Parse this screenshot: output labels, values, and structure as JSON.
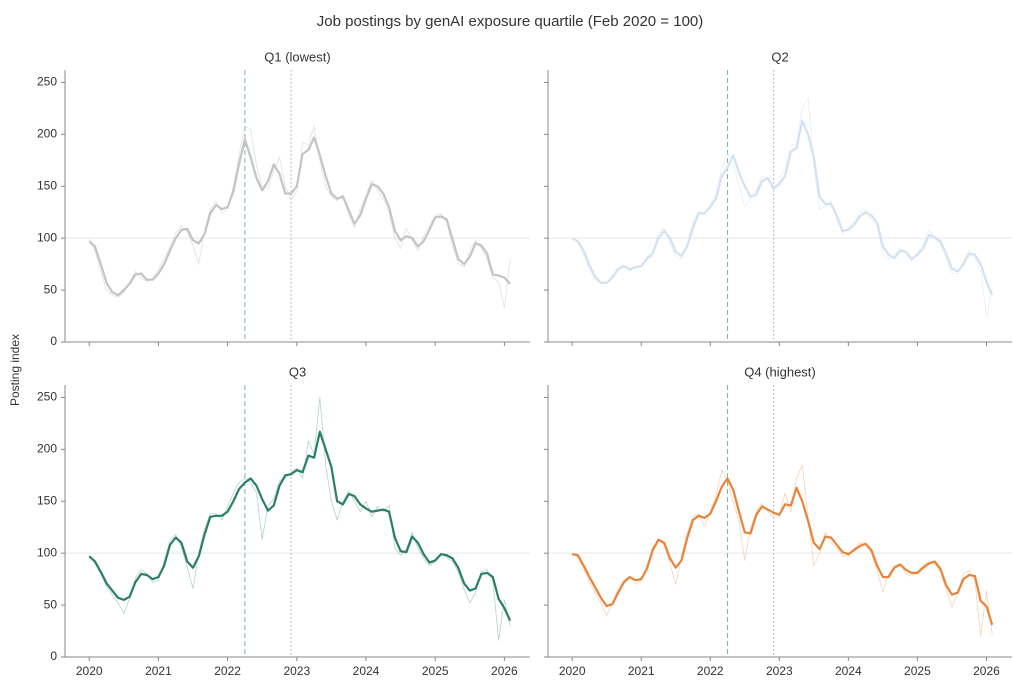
{
  "title": "Job postings by genAI exposure quartile (Feb 2020 = 100)",
  "ylabel": "Posting index",
  "chart_data": [
    {
      "type": "line",
      "title": "Q1 (lowest)",
      "xlim": [
        2019.65,
        2026.37
      ],
      "xticks": [
        2020,
        2021,
        2022,
        2023,
        2024,
        2025,
        2026
      ],
      "ylim": [
        0,
        262
      ],
      "yticks": [
        0,
        50,
        100,
        150,
        200,
        250
      ],
      "hline": 100,
      "vlines": [
        {
          "x": 2022.25,
          "style": "dashed",
          "color": "#7fb3a8"
        },
        {
          "x": 2022.917,
          "style": "dotted",
          "color": "#aaaaaa"
        }
      ],
      "x": [
        2020,
        2020.083,
        2020.167,
        2020.25,
        2020.333,
        2020.417,
        2020.5,
        2020.583,
        2020.667,
        2020.75,
        2020.833,
        2020.917,
        2021,
        2021.083,
        2021.167,
        2021.25,
        2021.333,
        2021.417,
        2021.5,
        2021.583,
        2021.667,
        2021.75,
        2021.833,
        2021.917,
        2022,
        2022.083,
        2022.167,
        2022.25,
        2022.333,
        2022.417,
        2022.5,
        2022.583,
        2022.667,
        2022.75,
        2022.833,
        2022.917,
        2023,
        2023.083,
        2023.167,
        2023.25,
        2023.333,
        2023.417,
        2023.5,
        2023.583,
        2023.667,
        2023.75,
        2023.833,
        2023.917,
        2024,
        2024.083,
        2024.167,
        2024.25,
        2024.333,
        2024.417,
        2024.5,
        2024.583,
        2024.667,
        2024.75,
        2024.833,
        2024.917,
        2025,
        2025.083,
        2025.167,
        2025.25,
        2025.333,
        2025.417,
        2025.5,
        2025.583,
        2025.667,
        2025.75,
        2025.833,
        2025.917,
        2026,
        2026.083
      ],
      "series": [
        {
          "color": "#c4c4c4",
          "width": 2.2,
          "opacity": 1,
          "values": [
            97,
            92,
            75,
            57,
            48,
            45,
            50,
            56,
            65,
            66,
            60,
            60,
            66,
            75,
            88,
            100,
            108,
            109,
            98,
            95,
            104,
            124,
            132,
            128,
            130,
            145,
            172,
            195,
            178,
            158,
            146,
            155,
            171,
            162,
            143,
            143,
            150,
            181,
            185,
            197,
            180,
            160,
            143,
            138,
            140,
            127,
            114,
            122,
            138,
            152,
            150,
            143,
            130,
            107,
            98,
            102,
            100,
            92,
            97,
            108,
            120,
            121,
            118,
            99,
            80,
            75,
            82,
            95,
            93,
            85,
            65,
            64,
            62,
            56
          ]
        },
        {
          "color": "#c4c4c4",
          "width": 0.8,
          "opacity": 0.5,
          "values": [
            99,
            88,
            68,
            50,
            45,
            43,
            48,
            58,
            68,
            62,
            58,
            62,
            70,
            80,
            92,
            105,
            112,
            106,
            93,
            75,
            108,
            128,
            136,
            124,
            128,
            150,
            180,
            208,
            205,
            170,
            150,
            148,
            165,
            178,
            150,
            137,
            145,
            192,
            190,
            208,
            175,
            150,
            140,
            136,
            142,
            122,
            110,
            128,
            142,
            156,
            146,
            138,
            125,
            100,
            90,
            110,
            98,
            88,
            102,
            112,
            122,
            124,
            115,
            92,
            76,
            72,
            88,
            98,
            90,
            80,
            62,
            58,
            33,
            80
          ]
        }
      ]
    },
    {
      "type": "line",
      "title": "Q2",
      "xlim": [
        2019.65,
        2026.37
      ],
      "xticks": [
        2020,
        2021,
        2022,
        2023,
        2024,
        2025,
        2026
      ],
      "ylim": [
        0,
        262
      ],
      "yticks": [
        0,
        50,
        100,
        150,
        200,
        250
      ],
      "hline": 100,
      "vlines": [
        {
          "x": 2022.25,
          "style": "dashed",
          "color": "#7fb3a8"
        },
        {
          "x": 2022.917,
          "style": "dotted",
          "color": "#aaaaaa"
        }
      ],
      "x": [
        2020,
        2020.083,
        2020.167,
        2020.25,
        2020.333,
        2020.417,
        2020.5,
        2020.583,
        2020.667,
        2020.75,
        2020.833,
        2020.917,
        2021,
        2021.083,
        2021.167,
        2021.25,
        2021.333,
        2021.417,
        2021.5,
        2021.583,
        2021.667,
        2021.75,
        2021.833,
        2021.917,
        2022,
        2022.083,
        2022.167,
        2022.25,
        2022.333,
        2022.417,
        2022.5,
        2022.583,
        2022.667,
        2022.75,
        2022.833,
        2022.917,
        2023,
        2023.083,
        2023.167,
        2023.25,
        2023.333,
        2023.417,
        2023.5,
        2023.583,
        2023.667,
        2023.75,
        2023.833,
        2023.917,
        2024,
        2024.083,
        2024.167,
        2024.25,
        2024.333,
        2024.417,
        2024.5,
        2024.583,
        2024.667,
        2024.75,
        2024.833,
        2024.917,
        2025,
        2025.083,
        2025.167,
        2025.25,
        2025.333,
        2025.417,
        2025.5,
        2025.583,
        2025.667,
        2025.75,
        2025.833,
        2025.917,
        2026,
        2026.083
      ],
      "series": [
        {
          "color": "#d3e2f2",
          "width": 2.2,
          "opacity": 1,
          "values": [
            100,
            97,
            88,
            74,
            63,
            57,
            57,
            62,
            70,
            73,
            70,
            72,
            73,
            80,
            85,
            100,
            107,
            100,
            87,
            83,
            92,
            110,
            124,
            124,
            130,
            138,
            160,
            168,
            180,
            163,
            150,
            140,
            142,
            155,
            158,
            148,
            152,
            160,
            183,
            187,
            213,
            200,
            178,
            140,
            133,
            133,
            122,
            107,
            108,
            113,
            121,
            125,
            122,
            115,
            92,
            84,
            81,
            88,
            87,
            80,
            84,
            90,
            103,
            101,
            97,
            85,
            71,
            68,
            75,
            85,
            84,
            75,
            58,
            45
          ]
        },
        {
          "color": "#d3e2f2",
          "width": 0.8,
          "opacity": 0.6,
          "values": [
            100,
            95,
            84,
            70,
            60,
            56,
            58,
            64,
            72,
            74,
            68,
            73,
            72,
            82,
            88,
            104,
            110,
            96,
            82,
            80,
            96,
            115,
            126,
            122,
            132,
            142,
            168,
            182,
            172,
            150,
            130,
            138,
            146,
            160,
            156,
            146,
            156,
            168,
            190,
            190,
            225,
            235,
            170,
            128,
            130,
            136,
            118,
            104,
            110,
            116,
            124,
            128,
            118,
            112,
            85,
            80,
            84,
            90,
            86,
            78,
            86,
            94,
            108,
            100,
            94,
            80,
            66,
            66,
            78,
            88,
            82,
            68,
            25,
            52
          ]
        }
      ]
    },
    {
      "type": "line",
      "title": "Q3",
      "xlim": [
        2019.65,
        2026.37
      ],
      "xticks": [
        2020,
        2021,
        2022,
        2023,
        2024,
        2025,
        2026
      ],
      "ylim": [
        0,
        262
      ],
      "yticks": [
        0,
        50,
        100,
        150,
        200,
        250
      ],
      "hline": 100,
      "vlines": [
        {
          "x": 2022.25,
          "style": "dashed",
          "color": "#7fb3a8"
        },
        {
          "x": 2022.917,
          "style": "dotted",
          "color": "#aaaaaa"
        }
      ],
      "x": [
        2020,
        2020.083,
        2020.167,
        2020.25,
        2020.333,
        2020.417,
        2020.5,
        2020.583,
        2020.667,
        2020.75,
        2020.833,
        2020.917,
        2021,
        2021.083,
        2021.167,
        2021.25,
        2021.333,
        2021.417,
        2021.5,
        2021.583,
        2021.667,
        2021.75,
        2021.833,
        2021.917,
        2022,
        2022.083,
        2022.167,
        2022.25,
        2022.333,
        2022.417,
        2022.5,
        2022.583,
        2022.667,
        2022.75,
        2022.833,
        2022.917,
        2023,
        2023.083,
        2023.167,
        2023.25,
        2023.333,
        2023.417,
        2023.5,
        2023.583,
        2023.667,
        2023.75,
        2023.833,
        2023.917,
        2024,
        2024.083,
        2024.167,
        2024.25,
        2024.333,
        2024.417,
        2024.5,
        2024.583,
        2024.667,
        2024.75,
        2024.833,
        2024.917,
        2025,
        2025.083,
        2025.167,
        2025.25,
        2025.333,
        2025.417,
        2025.5,
        2025.583,
        2025.667,
        2025.75,
        2025.833,
        2025.917,
        2026,
        2026.083
      ],
      "series": [
        {
          "color": "#2a7f6a",
          "width": 2.2,
          "opacity": 1,
          "values": [
            97,
            92,
            82,
            71,
            64,
            57,
            55,
            58,
            72,
            80,
            79,
            75,
            77,
            88,
            108,
            115,
            110,
            92,
            86,
            97,
            118,
            135,
            136,
            136,
            140,
            150,
            162,
            168,
            172,
            165,
            152,
            141,
            146,
            165,
            175,
            176,
            180,
            178,
            194,
            192,
            217,
            200,
            183,
            150,
            147,
            157,
            155,
            147,
            143,
            140,
            141,
            142,
            140,
            115,
            102,
            101,
            116,
            110,
            99,
            91,
            93,
            99,
            98,
            95,
            86,
            71,
            64,
            66,
            80,
            81,
            77,
            56,
            47,
            35
          ]
        },
        {
          "color": "#2a7f6a",
          "width": 0.8,
          "opacity": 0.35,
          "values": [
            98,
            90,
            80,
            68,
            60,
            52,
            42,
            56,
            76,
            84,
            80,
            72,
            74,
            92,
            112,
            118,
            106,
            86,
            66,
            100,
            124,
            138,
            138,
            132,
            145,
            158,
            168,
            172,
            168,
            158,
            113,
            146,
            152,
            170,
            172,
            178,
            182,
            172,
            208,
            195,
            250,
            185,
            150,
            132,
            150,
            160,
            150,
            140,
            150,
            135,
            145,
            140,
            146,
            105,
            98,
            104,
            120,
            105,
            95,
            88,
            92,
            100,
            96,
            92,
            82,
            65,
            52,
            62,
            82,
            84,
            74,
            16,
            55,
            30
          ]
        }
      ]
    },
    {
      "type": "line",
      "title": "Q4 (highest)",
      "xlim": [
        2019.65,
        2026.37
      ],
      "xticks": [
        2020,
        2021,
        2022,
        2023,
        2024,
        2025,
        2026
      ],
      "ylim": [
        0,
        262
      ],
      "yticks": [
        0,
        50,
        100,
        150,
        200,
        250
      ],
      "hline": 100,
      "vlines": [
        {
          "x": 2022.25,
          "style": "dashed",
          "color": "#7fb3a8"
        },
        {
          "x": 2022.917,
          "style": "dotted",
          "color": "#aaaaaa"
        }
      ],
      "x": [
        2020,
        2020.083,
        2020.167,
        2020.25,
        2020.333,
        2020.417,
        2020.5,
        2020.583,
        2020.667,
        2020.75,
        2020.833,
        2020.917,
        2021,
        2021.083,
        2021.167,
        2021.25,
        2021.333,
        2021.417,
        2021.5,
        2021.583,
        2021.667,
        2021.75,
        2021.833,
        2021.917,
        2022,
        2022.083,
        2022.167,
        2022.25,
        2022.333,
        2022.417,
        2022.5,
        2022.583,
        2022.667,
        2022.75,
        2022.833,
        2022.917,
        2023,
        2023.083,
        2023.167,
        2023.25,
        2023.333,
        2023.417,
        2023.5,
        2023.583,
        2023.667,
        2023.75,
        2023.833,
        2023.917,
        2024,
        2024.083,
        2024.167,
        2024.25,
        2024.333,
        2024.417,
        2024.5,
        2024.583,
        2024.667,
        2024.75,
        2024.833,
        2024.917,
        2025,
        2025.083,
        2025.167,
        2025.25,
        2025.333,
        2025.417,
        2025.5,
        2025.583,
        2025.667,
        2025.75,
        2025.833,
        2025.917,
        2026,
        2026.083
      ],
      "series": [
        {
          "color": "#e8843a",
          "width": 2.2,
          "opacity": 1,
          "values": [
            99,
            98,
            88,
            77,
            67,
            57,
            49,
            51,
            62,
            72,
            77,
            74,
            75,
            85,
            103,
            113,
            110,
            95,
            86,
            93,
            115,
            132,
            136,
            134,
            138,
            150,
            164,
            172,
            161,
            140,
            120,
            119,
            137,
            145,
            142,
            139,
            137,
            147,
            146,
            163,
            150,
            131,
            110,
            104,
            116,
            115,
            108,
            101,
            99,
            103,
            107,
            109,
            103,
            88,
            77,
            77,
            86,
            89,
            84,
            81,
            81,
            86,
            90,
            92,
            85,
            69,
            60,
            62,
            75,
            79,
            78,
            54,
            49,
            31
          ]
        },
        {
          "color": "#e8843a",
          "width": 0.8,
          "opacity": 0.35,
          "values": [
            100,
            96,
            85,
            72,
            62,
            52,
            40,
            52,
            66,
            74,
            78,
            70,
            74,
            88,
            106,
            112,
            108,
            90,
            70,
            96,
            120,
            135,
            138,
            126,
            140,
            155,
            180,
            170,
            150,
            130,
            93,
            125,
            140,
            148,
            140,
            135,
            135,
            158,
            140,
            172,
            185,
            135,
            88,
            100,
            120,
            110,
            105,
            98,
            97,
            105,
            110,
            108,
            100,
            83,
            63,
            80,
            88,
            90,
            80,
            78,
            82,
            88,
            92,
            90,
            82,
            64,
            48,
            62,
            80,
            84,
            73,
            20,
            64,
            22
          ]
        }
      ]
    }
  ]
}
